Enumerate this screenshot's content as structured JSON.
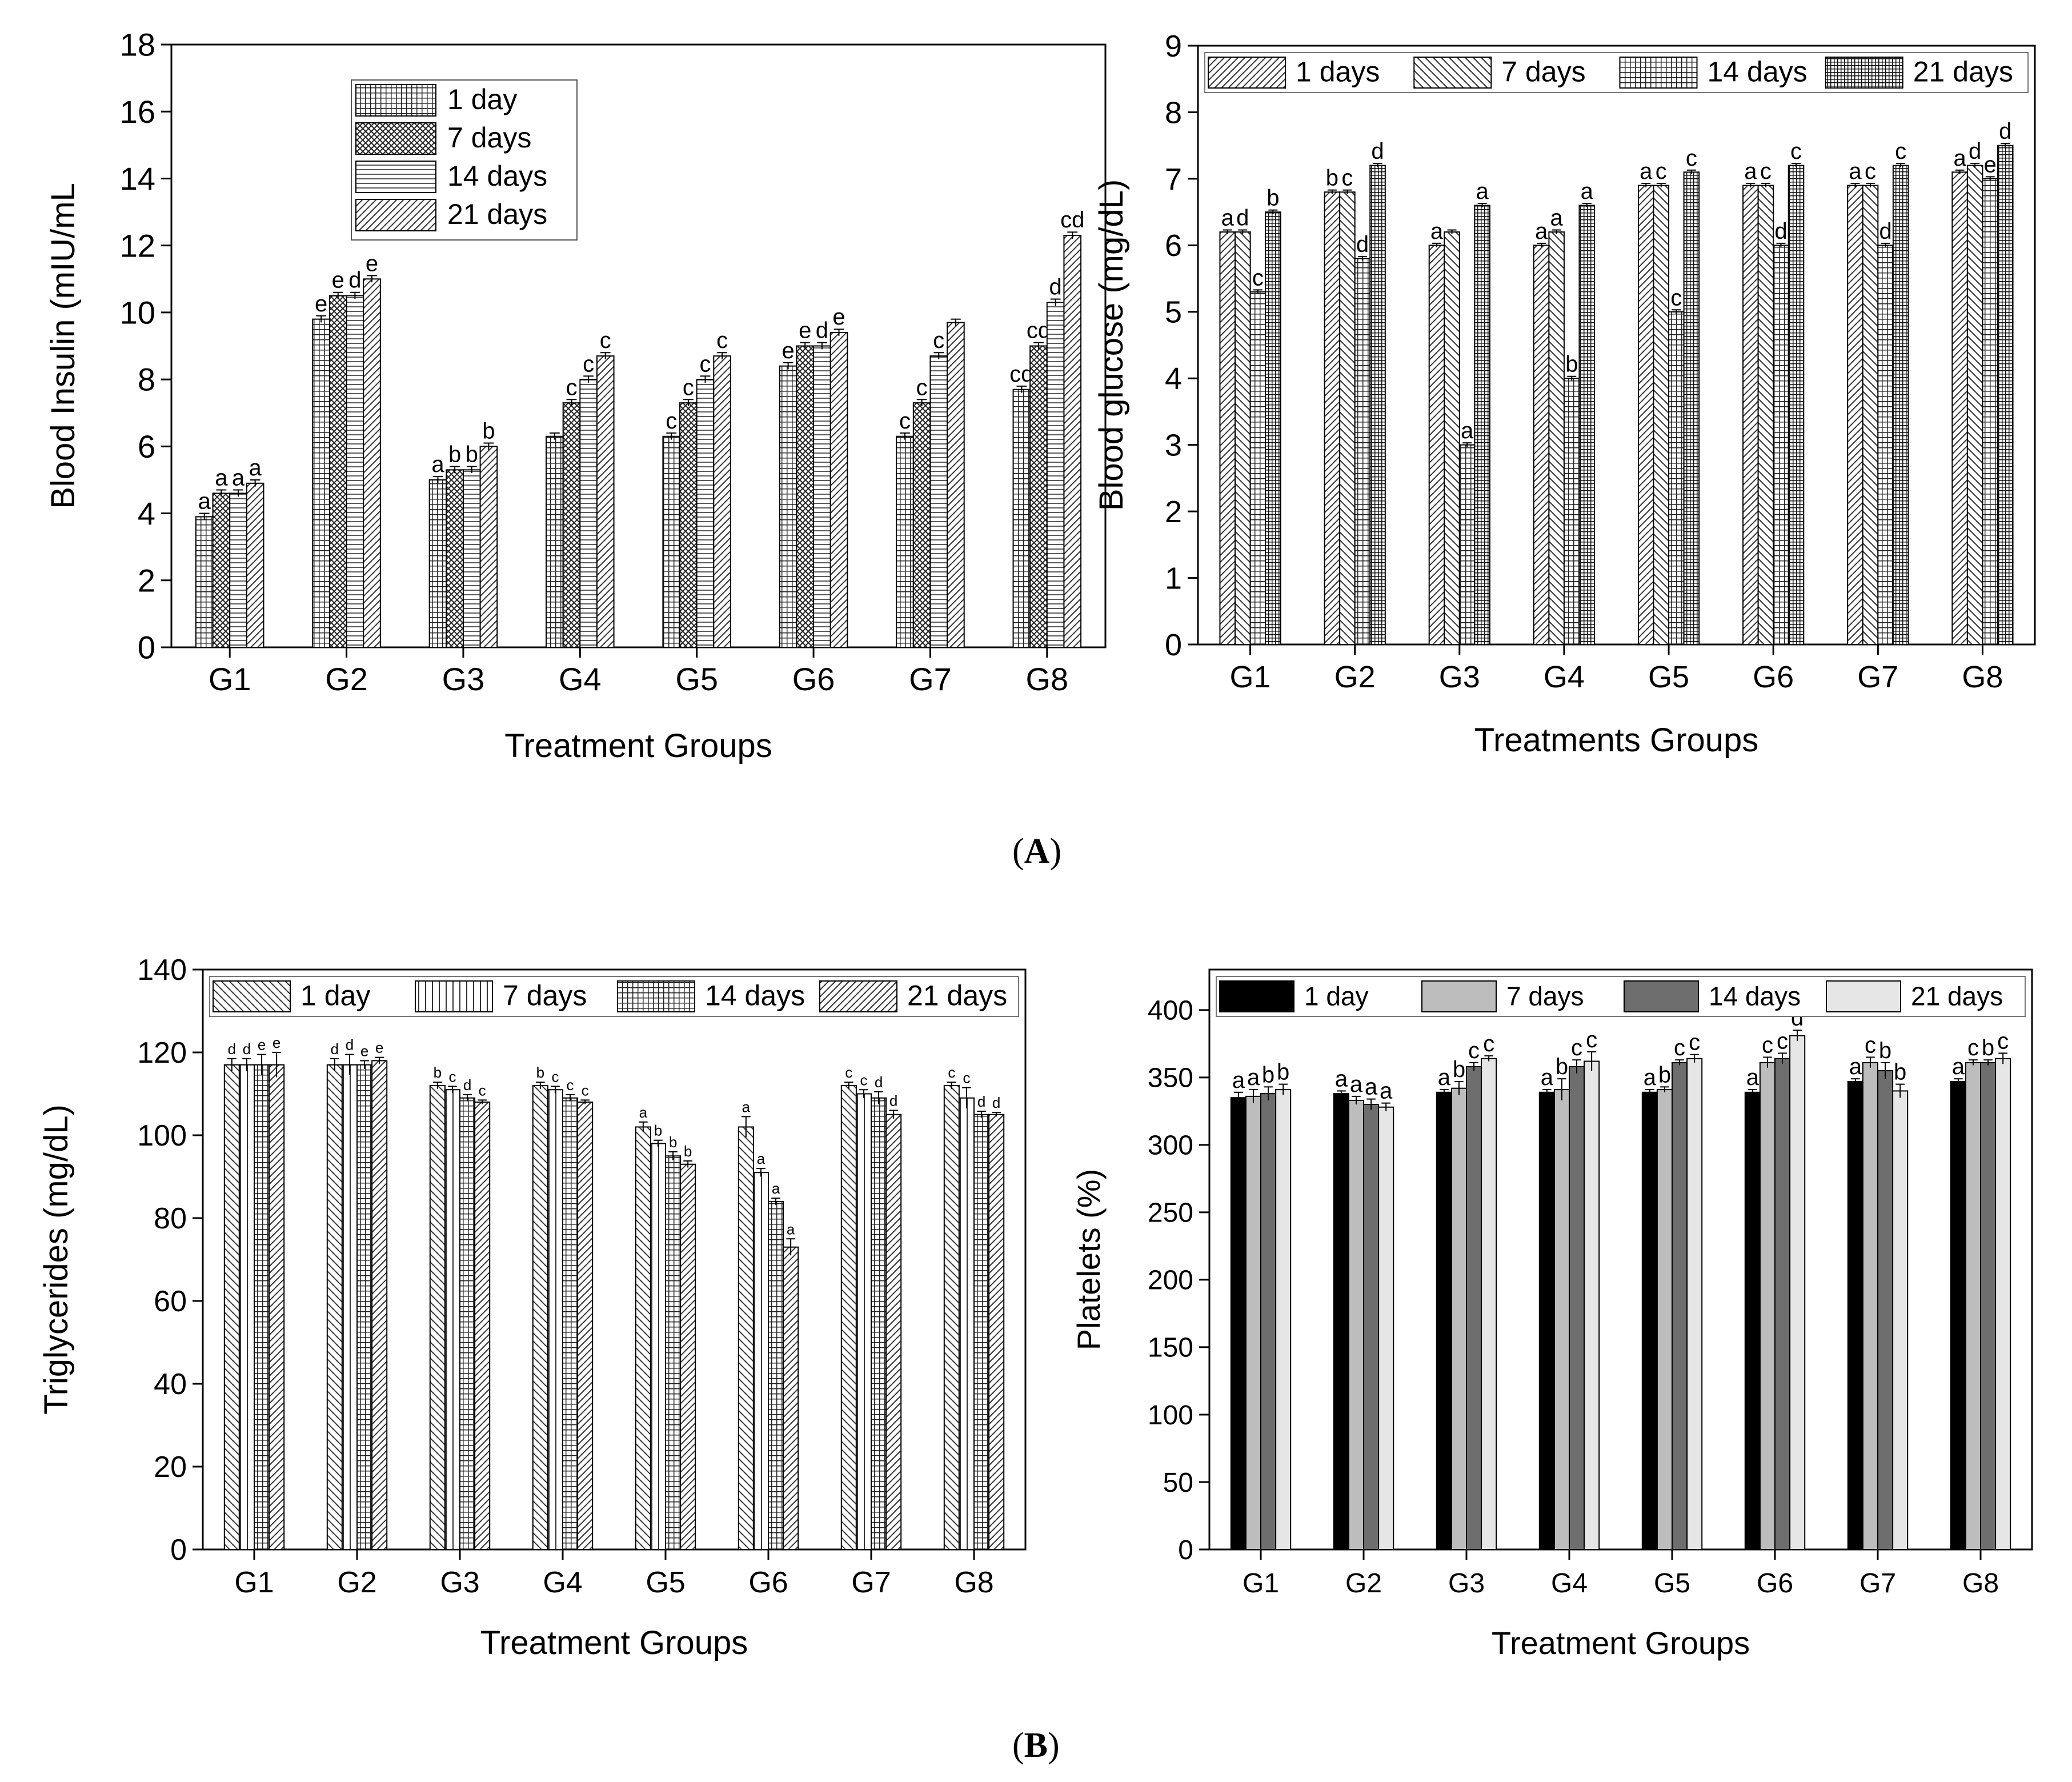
{
  "figure": {
    "panel_a": "A",
    "panel_b": "B",
    "paren_open": "(",
    "paren_close": ")"
  },
  "chart_data": [
    {
      "id": "insulin",
      "type": "bar",
      "title": "",
      "xlabel": "Treatment Groups",
      "ylabel": "Blood Insulin (mIU/mL",
      "categories": [
        "G1",
        "G2",
        "G3",
        "G4",
        "G5",
        "G6",
        "G7",
        "G8"
      ],
      "ylim": [
        0,
        18
      ],
      "yticks": [
        0,
        2,
        4,
        6,
        8,
        10,
        12,
        14,
        16,
        18
      ],
      "legend_position": "top-left-center",
      "legend_layout": "vertical",
      "series": [
        {
          "name": "1 day",
          "pattern": "grid",
          "values": [
            3.9,
            9.8,
            5.0,
            6.3,
            6.3,
            8.4,
            6.3,
            7.7
          ],
          "errors": [
            0.1,
            0.1,
            0.1,
            0.1,
            0.1,
            0.1,
            0.1,
            0.1
          ],
          "labels": [
            "a",
            "e",
            "a",
            "",
            "c",
            "e",
            "c",
            "cd"
          ]
        },
        {
          "name": "7 days",
          "pattern": "crosshatch",
          "values": [
            4.6,
            10.5,
            5.3,
            7.3,
            7.3,
            9.0,
            7.3,
            9.0
          ],
          "errors": [
            0.1,
            0.1,
            0.1,
            0.1,
            0.1,
            0.1,
            0.1,
            0.1
          ],
          "labels": [
            "a",
            "e",
            "b",
            "c",
            "c",
            "e",
            "c",
            "cd"
          ]
        },
        {
          "name": "14 days",
          "pattern": "horizontal",
          "values": [
            4.6,
            10.5,
            5.3,
            8.0,
            8.0,
            9.0,
            8.7,
            10.3
          ],
          "errors": [
            0.1,
            0.1,
            0.1,
            0.1,
            0.1,
            0.1,
            0.1,
            0.1
          ],
          "labels": [
            "a",
            "d",
            "b",
            "c",
            "c",
            "d",
            "c",
            "d"
          ]
        },
        {
          "name": "21 days",
          "pattern": "diag-right",
          "values": [
            4.9,
            11.0,
            6.0,
            8.7,
            8.7,
            9.4,
            9.7,
            12.3
          ],
          "errors": [
            0.1,
            0.1,
            0.1,
            0.1,
            0.1,
            0.1,
            0.1,
            0.1
          ],
          "labels": [
            "a",
            "e",
            "b",
            "c",
            "c",
            "e",
            "",
            "cd"
          ]
        }
      ]
    },
    {
      "id": "glucose",
      "type": "bar",
      "title": "",
      "xlabel": "Treatments Groups",
      "ylabel": "Blood glucose (mg/dL)",
      "categories": [
        "G1",
        "G2",
        "G3",
        "G4",
        "G5",
        "G6",
        "G7",
        "G8"
      ],
      "ylim": [
        0,
        9
      ],
      "yticks": [
        0,
        1,
        2,
        3,
        4,
        5,
        6,
        7,
        8,
        9
      ],
      "legend_position": "top",
      "legend_layout": "horizontal",
      "series": [
        {
          "name": "1 days",
          "pattern": "diag-right",
          "values": [
            6.2,
            6.8,
            6.0,
            6.0,
            6.9,
            6.9,
            6.9,
            7.1
          ],
          "errors": [
            0.03,
            0.03,
            0.03,
            0.03,
            0.03,
            0.03,
            0.03,
            0.03
          ],
          "labels": [
            "a",
            "b",
            "a",
            "a",
            "a",
            "a",
            "a",
            "a"
          ]
        },
        {
          "name": "7 days",
          "pattern": "diag-left",
          "values": [
            6.2,
            6.8,
            6.2,
            6.2,
            6.9,
            6.9,
            6.9,
            7.2
          ],
          "errors": [
            0.03,
            0.03,
            0.03,
            0.03,
            0.03,
            0.03,
            0.03,
            0.03
          ],
          "labels": [
            "d",
            "c",
            "",
            "a",
            "c",
            "c",
            "c",
            "d"
          ]
        },
        {
          "name": "14 days",
          "pattern": "grid",
          "values": [
            5.3,
            5.8,
            3.0,
            4.0,
            5.0,
            6.0,
            6.0,
            7.0
          ],
          "errors": [
            0.03,
            0.03,
            0.03,
            0.03,
            0.03,
            0.03,
            0.03,
            0.03
          ],
          "labels": [
            "c",
            "d",
            "a",
            "b",
            "c",
            "d",
            "d",
            "e"
          ]
        },
        {
          "name": "21 days",
          "pattern": "grid-dense",
          "values": [
            6.5,
            7.2,
            6.6,
            6.6,
            7.1,
            7.2,
            7.2,
            7.5
          ],
          "errors": [
            0.03,
            0.03,
            0.03,
            0.03,
            0.03,
            0.03,
            0.03,
            0.03
          ],
          "labels": [
            "b",
            "d",
            "a",
            "a",
            "c",
            "c",
            "c",
            "d"
          ]
        }
      ]
    },
    {
      "id": "triglycerides",
      "type": "bar",
      "title": "",
      "xlabel": "Treatment Groups",
      "ylabel": "Triglycerides (mg/dL)",
      "categories": [
        "G1",
        "G2",
        "G3",
        "G4",
        "G5",
        "G6",
        "G7",
        "G8"
      ],
      "ylim": [
        0,
        140
      ],
      "yticks": [
        0,
        20,
        40,
        60,
        80,
        100,
        120,
        140
      ],
      "legend_position": "top",
      "legend_layout": "horizontal",
      "series": [
        {
          "name": "1 day",
          "pattern": "diag-left",
          "values": [
            117,
            117,
            112,
            112,
            102,
            102,
            112,
            112
          ],
          "errors": [
            1.5,
            1.5,
            0.8,
            0.8,
            1.2,
            2.5,
            0.8,
            0.8
          ],
          "labels": [
            "d",
            "d",
            "b",
            "b",
            "a",
            "a",
            "c",
            "c"
          ]
        },
        {
          "name": "7 days",
          "pattern": "vertical",
          "values": [
            117,
            117,
            111,
            111,
            98,
            91,
            110,
            109
          ],
          "errors": [
            1.5,
            2.5,
            0.8,
            0.8,
            0.8,
            1.0,
            1.0,
            2.5
          ],
          "labels": [
            "d",
            "d",
            "c",
            "c",
            "b",
            "a",
            "c",
            "c"
          ]
        },
        {
          "name": "14 days",
          "pattern": "grid",
          "values": [
            117,
            117,
            109,
            109,
            95,
            84,
            109,
            105
          ],
          "errors": [
            2.5,
            1.0,
            0.8,
            0.8,
            1.0,
            0.8,
            1.5,
            0.8
          ],
          "labels": [
            "e",
            "e",
            "d",
            "c",
            "b",
            "a",
            "d",
            "d"
          ]
        },
        {
          "name": "21 days",
          "pattern": "diag-right",
          "values": [
            117,
            118,
            108,
            108,
            93,
            73,
            105,
            105
          ],
          "errors": [
            3.0,
            0.8,
            0.5,
            0.5,
            0.8,
            2.0,
            1.0,
            0.5
          ],
          "labels": [
            "e",
            "e",
            "c",
            "c",
            "b",
            "a",
            "d",
            "d"
          ]
        }
      ]
    },
    {
      "id": "platelets",
      "type": "bar",
      "title": "",
      "xlabel": "Treatment Groups",
      "ylabel": "Platelets (%)",
      "categories": [
        "G1",
        "G2",
        "G3",
        "G4",
        "G5",
        "G6",
        "G7",
        "G8"
      ],
      "ylim": [
        0,
        430
      ],
      "yticks": [
        0,
        50,
        100,
        150,
        200,
        250,
        300,
        350,
        400
      ],
      "legend_position": "top",
      "legend_layout": "horizontal",
      "series": [
        {
          "name": "1 day",
          "pattern": "solid",
          "color": "#000000",
          "values": [
            335,
            338,
            339,
            339,
            339,
            339,
            347,
            347
          ],
          "errors": [
            4,
            2,
            2,
            2,
            2,
            2,
            2,
            2
          ],
          "labels": [
            "a",
            "a",
            "a",
            "a",
            "a",
            "a",
            "a",
            "a"
          ]
        },
        {
          "name": "7 days",
          "pattern": "solid",
          "color": "#bdbdbd",
          "values": [
            336,
            333,
            342,
            341,
            341,
            361,
            361,
            361
          ],
          "errors": [
            5,
            3,
            5,
            8,
            2,
            4,
            4,
            2
          ],
          "labels": [
            "a",
            "a",
            "b",
            "b",
            "b",
            "c",
            "c",
            "c"
          ]
        },
        {
          "name": "14 days",
          "pattern": "solid",
          "color": "#6e6e6e",
          "values": [
            338,
            330,
            358,
            358,
            361,
            364,
            355,
            361
          ],
          "errors": [
            5,
            4,
            3,
            5,
            2,
            4,
            6,
            2
          ],
          "labels": [
            "b",
            "a",
            "c",
            "c",
            "c",
            "c",
            "b",
            "b"
          ]
        },
        {
          "name": "21 days",
          "pattern": "solid",
          "color": "#e6e6e6",
          "values": [
            341,
            328,
            364,
            362,
            364,
            381,
            340,
            364
          ],
          "errors": [
            4,
            3,
            2,
            7,
            3,
            4,
            5,
            4
          ],
          "labels": [
            "b",
            "a",
            "c",
            "c",
            "c",
            "d",
            "b",
            "c"
          ]
        }
      ]
    }
  ]
}
